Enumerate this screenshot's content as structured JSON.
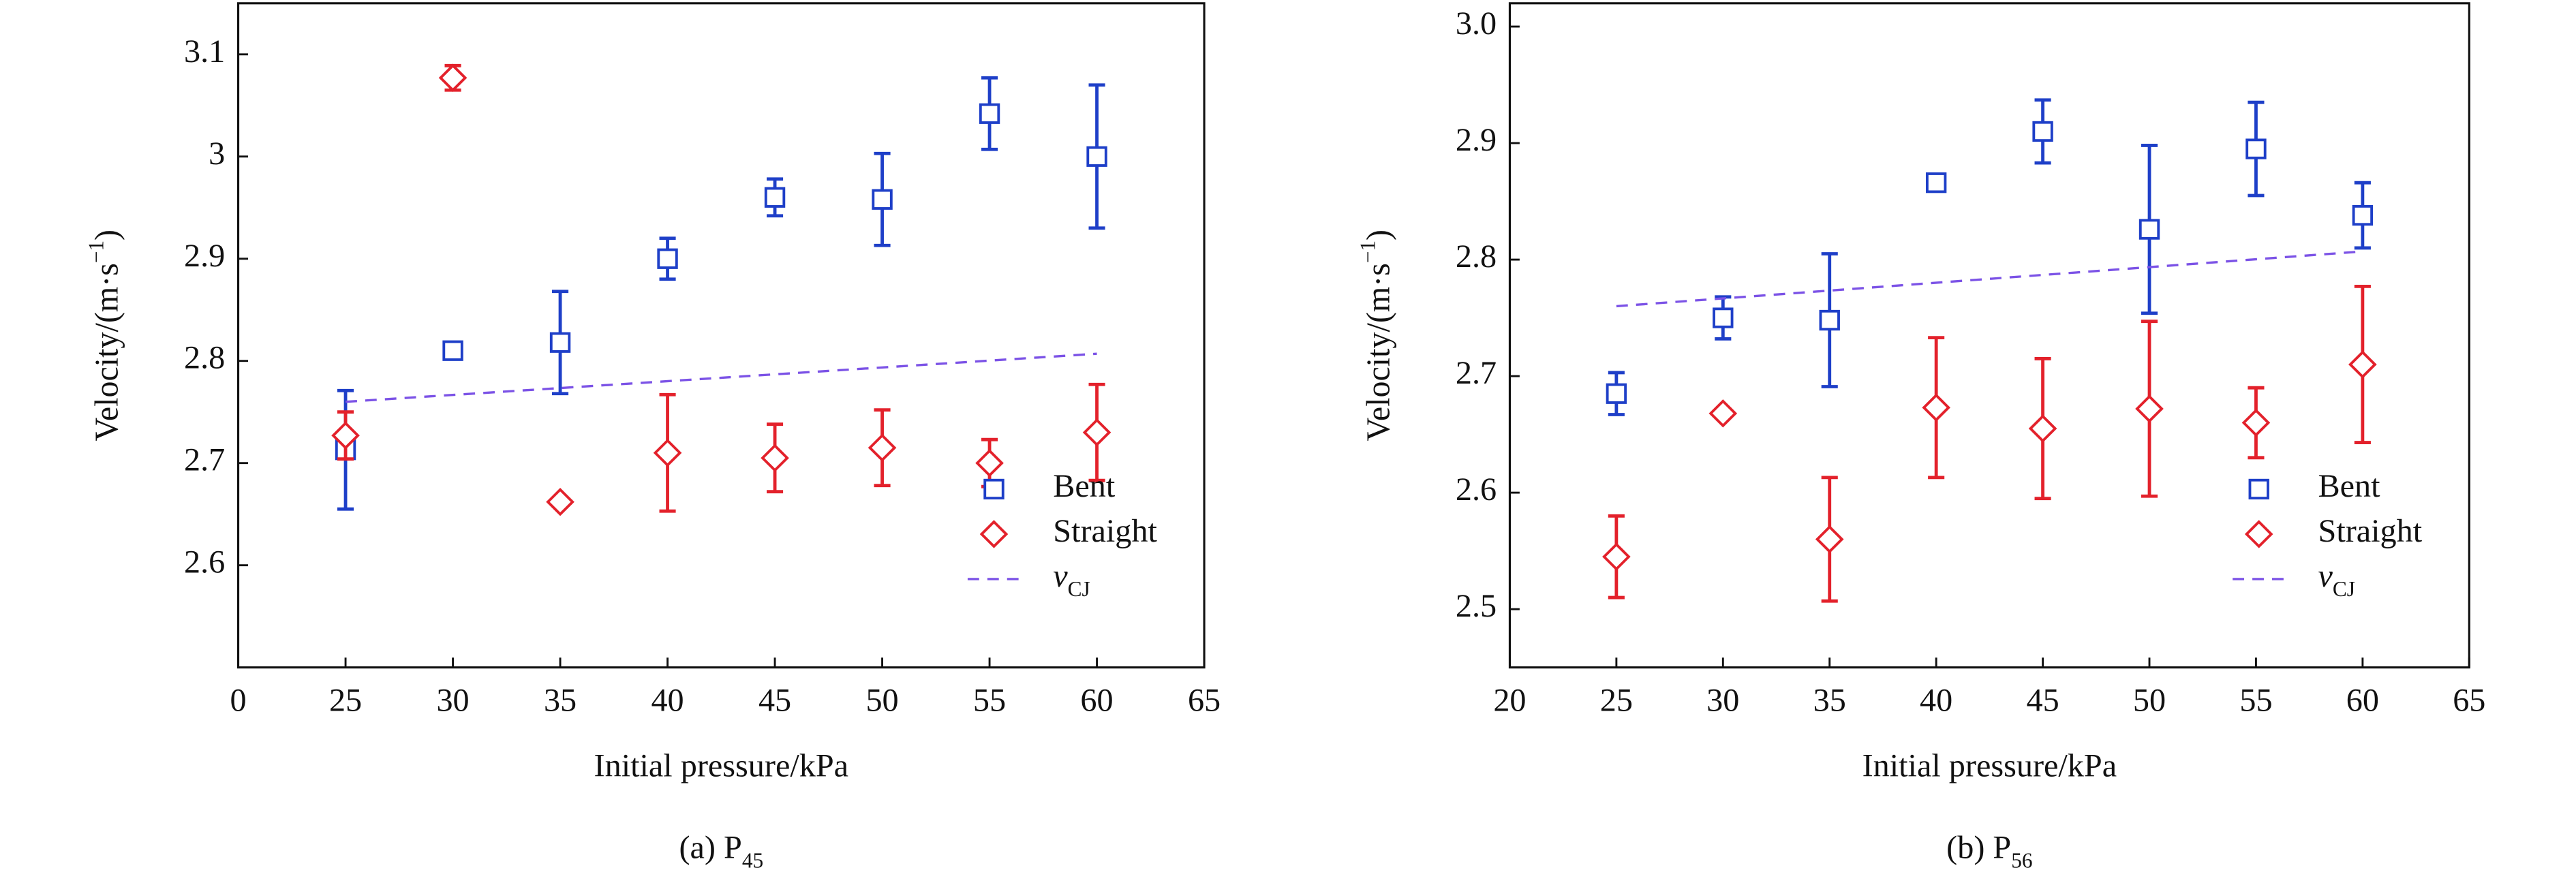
{
  "chart_data": [
    {
      "type": "scatter",
      "caption": "(a) P",
      "caption_sub": "45",
      "xlabel": "Initial pressure/kPa",
      "ylabel": "Velocity/(m·s",
      "ylabel_sup": "−1",
      "ylabel_end": ")",
      "x": [
        25,
        30,
        35,
        40,
        45,
        50,
        55,
        60
      ],
      "xlim": [
        20,
        65
      ],
      "xticks": [
        {
          "value": 20,
          "label": "0"
        },
        25,
        30,
        35,
        40,
        45,
        50,
        55,
        60,
        65
      ],
      "ylim": [
        2.5,
        3.15
      ],
      "yticks": [
        2.6,
        2.7,
        2.8,
        2.9,
        3.0,
        3.1
      ],
      "legend": "lower right",
      "series": [
        {
          "name": "Bent",
          "color": "#1e3fc8",
          "marker": "square",
          "values": [
            2.713,
            2.81,
            2.818,
            2.9,
            2.96,
            2.958,
            3.042,
            3.0
          ],
          "errors": [
            0.058,
            0.005,
            0.05,
            0.02,
            0.018,
            0.045,
            0.035,
            0.07
          ]
        },
        {
          "name": "Straight",
          "color": "#e3212b",
          "marker": "diamond",
          "values": [
            2.727,
            3.077,
            2.662,
            2.71,
            2.705,
            2.715,
            2.7,
            2.73
          ],
          "errors": [
            0.023,
            0.012,
            0.003,
            0.057,
            0.033,
            0.037,
            0.023,
            0.047
          ]
        },
        {
          "name": "v",
          "name_sub": "CJ",
          "italic": true,
          "color": "#7b52e6",
          "linestyle": "dashed",
          "x": [
            25,
            60
          ],
          "values": [
            2.76,
            2.807
          ]
        }
      ]
    },
    {
      "type": "scatter",
      "caption": "(b) P",
      "caption_sub": "56",
      "xlabel": "Initial pressure/kPa",
      "ylabel": "Velocity/(m·s",
      "ylabel_sup": "−1",
      "ylabel_end": ")",
      "x": [
        25,
        30,
        35,
        40,
        45,
        50,
        55,
        60
      ],
      "xlim": [
        20,
        65
      ],
      "xticks": [
        20,
        25,
        30,
        35,
        40,
        45,
        50,
        55,
        60,
        65
      ],
      "ylim": [
        2.45,
        3.02
      ],
      "yticks": [
        2.5,
        2.6,
        2.7,
        2.8,
        2.9,
        {
          "value": 3.0,
          "label": "3.0"
        }
      ],
      "legend": "lower right",
      "series": [
        {
          "name": "Bent",
          "color": "#1e3fc8",
          "marker": "square",
          "values": [
            2.685,
            2.75,
            2.748,
            2.866,
            2.91,
            2.826,
            2.895,
            2.838
          ],
          "errors": [
            0.018,
            0.018,
            0.057,
            0.003,
            0.027,
            0.072,
            0.04,
            0.028
          ]
        },
        {
          "name": "Straight",
          "color": "#e3212b",
          "marker": "diamond",
          "values": [
            2.545,
            2.668,
            2.56,
            2.673,
            2.655,
            2.672,
            2.66,
            2.71
          ],
          "errors": [
            0.035,
            0.003,
            0.053,
            0.06,
            0.06,
            0.075,
            0.03,
            0.067
          ]
        },
        {
          "name": "v",
          "name_sub": "CJ",
          "italic": true,
          "color": "#7b52e6",
          "linestyle": "dashed",
          "x": [
            25,
            60
          ],
          "values": [
            2.76,
            2.807
          ]
        }
      ]
    }
  ]
}
